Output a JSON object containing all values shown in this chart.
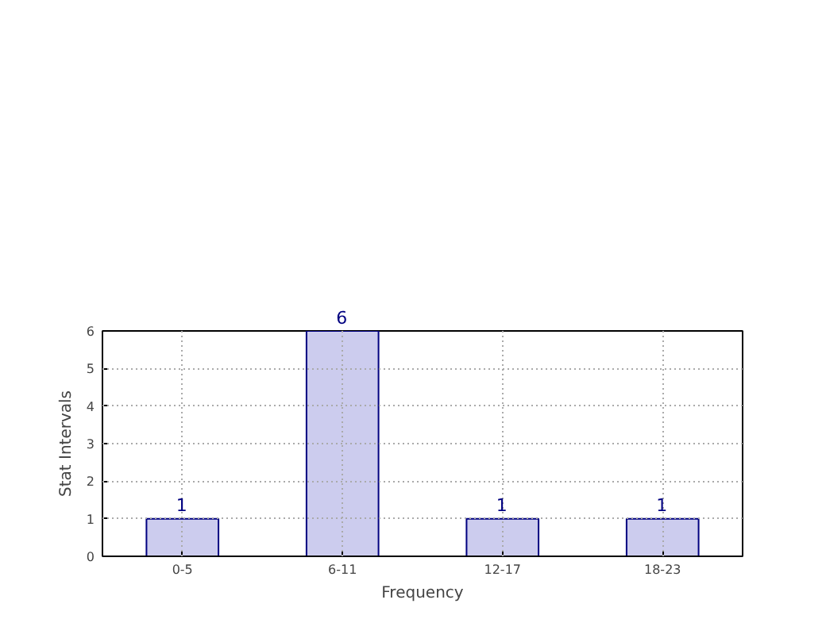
{
  "chart_data": {
    "type": "bar",
    "xlabel": "Frequency",
    "ylabel": "Stat Intervals",
    "categories": [
      "0-5",
      "6-11",
      "12-17",
      "18-23"
    ],
    "values": [
      1,
      6,
      1,
      1
    ],
    "color": "#ccccee",
    "ylim": [
      0,
      6
    ],
    "yticks": [
      0,
      1,
      2,
      3,
      4,
      5,
      6
    ],
    "grid": true,
    "data_labels": true
  }
}
